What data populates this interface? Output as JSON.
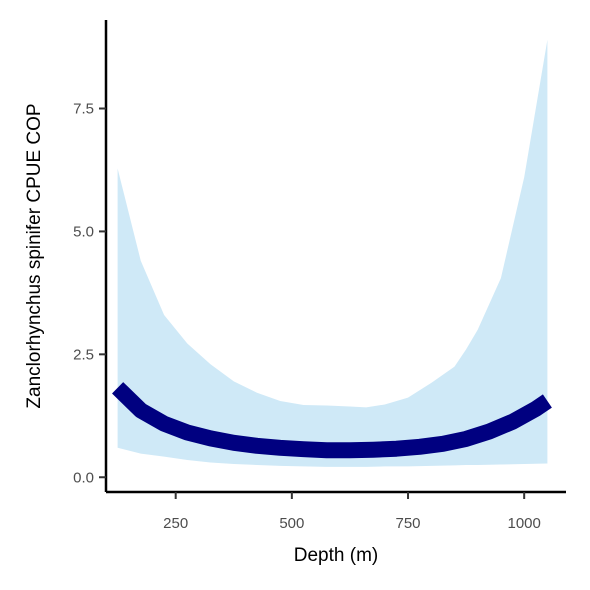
{
  "chart_data": {
    "type": "line",
    "title": "",
    "xlabel": "Depth (m)",
    "ylabel": "Zanclorhynchus spinifer  CPUE COP",
    "xlim": [
      100,
      1090
    ],
    "ylim": [
      -0.3,
      9.3
    ],
    "xticks": [
      250,
      500,
      750,
      1000
    ],
    "xtick_labels": [
      "250",
      "500",
      "750",
      "1000"
    ],
    "yticks": [
      0,
      2.5,
      5,
      7.5
    ],
    "ytick_labels": [
      "0.0",
      "2.5",
      "5.0",
      "7.5"
    ],
    "grid": false,
    "legend": "none",
    "colors": {
      "line": "#000080",
      "ribbon": "#cfe9f7",
      "axis": "#000000"
    },
    "series": [
      {
        "type": "line",
        "x": [
          125,
          175,
          225,
          275,
          325,
          375,
          425,
          475,
          525,
          575,
          625,
          675,
          725,
          775,
          825,
          875,
          925,
          975,
          1025,
          1050
        ],
        "values": [
          1.82,
          1.36,
          1.09,
          0.91,
          0.79,
          0.7,
          0.64,
          0.6,
          0.57,
          0.55,
          0.55,
          0.56,
          0.58,
          0.62,
          0.68,
          0.78,
          0.93,
          1.13,
          1.39,
          1.55
        ]
      },
      {
        "type": "ribbon",
        "x": [
          125,
          175,
          225,
          275,
          325,
          375,
          425,
          475,
          525,
          575,
          625,
          660,
          700,
          750,
          800,
          850,
          875,
          900,
          950,
          1000,
          1050
        ],
        "lower": [
          0.6,
          0.48,
          0.42,
          0.35,
          0.3,
          0.27,
          0.25,
          0.23,
          0.22,
          0.21,
          0.21,
          0.21,
          0.22,
          0.22,
          0.23,
          0.24,
          0.25,
          0.25,
          0.26,
          0.27,
          0.28
        ],
        "upper": [
          6.28,
          4.4,
          3.3,
          2.72,
          2.3,
          1.95,
          1.72,
          1.55,
          1.47,
          1.46,
          1.44,
          1.42,
          1.48,
          1.62,
          1.92,
          2.25,
          2.6,
          3.0,
          4.05,
          6.1,
          8.9
        ]
      }
    ]
  }
}
